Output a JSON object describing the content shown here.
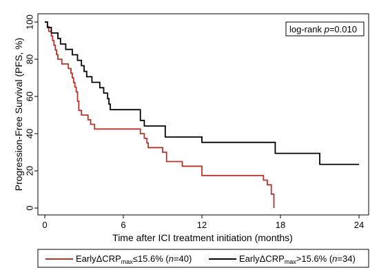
{
  "chart_data": {
    "type": "line",
    "step": true,
    "xlabel": "Time after ICI treatment initiation (months)",
    "ylabel": "Progression-Free Survival (PFS, %)",
    "xlim": [
      0,
      24
    ],
    "ylim": [
      0,
      100
    ],
    "xticks": [
      0,
      6,
      12,
      18,
      24
    ],
    "yticks": [
      0,
      20,
      40,
      60,
      80,
      100
    ],
    "xtick_labels": [
      "0",
      "6",
      "12",
      "18",
      "24"
    ],
    "ytick_labels": [
      "0",
      "20",
      "40",
      "60",
      "80",
      "100"
    ],
    "grid": false,
    "legend_position": "bottom",
    "annotation": {
      "prefix": "log-rank ",
      "italic": "p",
      "suffix": "=0.010"
    },
    "series": [
      {
        "name": "EarlyΔCRPmax≤15.6% (n=40)",
        "legend": {
          "pre": "EarlyΔCRP",
          "sub": "max",
          "post": "≤15.6% (",
          "italic": "n",
          "end": "=40)"
        },
        "color": "#b5332b",
        "points": [
          [
            0,
            100
          ],
          [
            0.2,
            97.5
          ],
          [
            0.3,
            95
          ],
          [
            0.5,
            92.5
          ],
          [
            0.6,
            90
          ],
          [
            0.7,
            87.5
          ],
          [
            0.8,
            85
          ],
          [
            0.9,
            82.5
          ],
          [
            1.0,
            80
          ],
          [
            1.3,
            77.5
          ],
          [
            1.8,
            75
          ],
          [
            2.0,
            72.5
          ],
          [
            2.1,
            70
          ],
          [
            2.2,
            67.5
          ],
          [
            2.3,
            65
          ],
          [
            2.4,
            62.5
          ],
          [
            2.5,
            57.5
          ],
          [
            2.6,
            52.5
          ],
          [
            2.8,
            50
          ],
          [
            3.3,
            47.5
          ],
          [
            3.5,
            45
          ],
          [
            3.8,
            42.5
          ],
          [
            7.3,
            40
          ],
          [
            7.6,
            37.5
          ],
          [
            7.8,
            35
          ],
          [
            7.9,
            32.5
          ],
          [
            9.0,
            30
          ],
          [
            9.3,
            25
          ],
          [
            10.5,
            22.5
          ],
          [
            12.0,
            17.5
          ],
          [
            16.7,
            15
          ],
          [
            17.0,
            12.5
          ],
          [
            17.3,
            7.5
          ],
          [
            17.5,
            0
          ]
        ],
        "end_x": 17.5
      },
      {
        "name": "EarlyΔCRPmax>15.6% (n=34)",
        "legend": {
          "pre": "EarlyΔCRP",
          "sub": "max",
          "post": ">15.6% (",
          "italic": "n",
          "end": "=34)"
        },
        "color": "#000000",
        "points": [
          [
            0,
            100
          ],
          [
            0.2,
            97.1
          ],
          [
            0.5,
            94.1
          ],
          [
            1.0,
            91.2
          ],
          [
            1.2,
            88.2
          ],
          [
            1.6,
            85.3
          ],
          [
            2.1,
            82.4
          ],
          [
            2.5,
            79.4
          ],
          [
            2.8,
            76.5
          ],
          [
            3.0,
            73.5
          ],
          [
            3.2,
            70.6
          ],
          [
            3.6,
            67.6
          ],
          [
            4.2,
            64.7
          ],
          [
            4.5,
            61.8
          ],
          [
            4.8,
            58.8
          ],
          [
            4.9,
            55.9
          ],
          [
            5.0,
            52.9
          ],
          [
            7.3,
            47.1
          ],
          [
            7.6,
            44.1
          ],
          [
            9.2,
            38.2
          ],
          [
            12.0,
            35.3
          ],
          [
            17.6,
            29.4
          ],
          [
            21.0,
            23.5
          ]
        ],
        "end_x": 24.0
      }
    ]
  }
}
